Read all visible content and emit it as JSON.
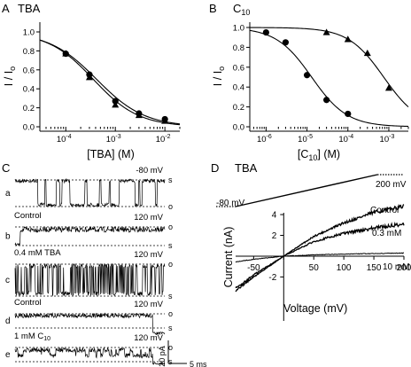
{
  "chart_data": [
    {
      "panel": "A",
      "type": "scatter",
      "title": "TBA",
      "xscale": "log",
      "xlabel": "[TBA] (M)",
      "ylabel": "I / I",
      "ylabel_sub": "o",
      "xlim": [
        3e-05,
        0.02
      ],
      "ylim": [
        0,
        1.0
      ],
      "xtick_base": "10",
      "xticks": [
        {
          "value": 0.0001,
          "exp": "-4"
        },
        {
          "value": 0.001,
          "exp": "-3"
        },
        {
          "value": 0.01,
          "exp": "-2"
        }
      ],
      "yticks": [
        0.0,
        0.2,
        0.4,
        0.6,
        0.8,
        1.0
      ],
      "ytick_labels": [
        "0.0",
        "0.2",
        "0.4",
        "0.6",
        "0.8",
        "1.0"
      ],
      "series": [
        {
          "marker": "circle",
          "x": [
            0.0001,
            0.0003,
            0.001,
            0.003,
            0.01
          ],
          "y": [
            0.77,
            0.55,
            0.27,
            0.14,
            0.08
          ]
        },
        {
          "marker": "triangle",
          "x": [
            0.0001,
            0.0003,
            0.001,
            0.003,
            0.01
          ],
          "y": [
            0.77,
            0.52,
            0.23,
            0.12,
            0.06
          ]
        }
      ],
      "fits": [
        {
          "ic50": 0.00042,
          "n": 0.9
        },
        {
          "ic50": 0.00036,
          "n": 0.95
        }
      ],
      "grid": false
    },
    {
      "panel": "B",
      "type": "scatter",
      "title": "C",
      "title_sub": "10",
      "xscale": "log",
      "xlabel_pre": "[C",
      "xlabel_sub": "10",
      "xlabel_post": "] (M)",
      "ylabel": "I / I",
      "ylabel_sub": "o",
      "xlim": [
        4e-07,
        0.003
      ],
      "ylim": [
        0,
        1.0
      ],
      "xtick_base": "10",
      "xticks": [
        {
          "value": 1e-06,
          "exp": "-6"
        },
        {
          "value": 1e-05,
          "exp": "-5"
        },
        {
          "value": 0.0001,
          "exp": "-4"
        },
        {
          "value": 0.001,
          "exp": "-3"
        }
      ],
      "yticks": [
        0.0,
        0.2,
        0.4,
        0.6,
        0.8,
        1.0
      ],
      "ytick_labels": [
        "0.0",
        "0.2",
        "0.4",
        "0.6",
        "0.8",
        "1.0"
      ],
      "series": [
        {
          "marker": "circle",
          "x": [
            1e-06,
            3e-06,
            1e-05,
            3e-05,
            0.0001
          ],
          "y": [
            0.95,
            0.85,
            0.52,
            0.27,
            0.13
          ]
        },
        {
          "marker": "triangle",
          "x": [
            3e-05,
            0.0001,
            0.0003,
            0.001
          ],
          "y": [
            0.95,
            0.88,
            0.74,
            0.39
          ]
        }
      ],
      "fits": [
        {
          "ic50": 1.3e-05,
          "n": 1.0
        },
        {
          "ic50": 0.00075,
          "n": 1.0
        }
      ],
      "grid": false
    },
    {
      "panel": "C",
      "type": "line",
      "description_labels": true,
      "traces": [
        {
          "row": "a",
          "label": "",
          "voltage": "-80 mV",
          "dashed_top": "s",
          "dashed_bottom": "o",
          "mode": "bursts_down"
        },
        {
          "row": "b",
          "label": "Control",
          "voltage": "120 mV",
          "dashed_top": "o",
          "dashed_bottom": "s",
          "mode": "open_noise"
        },
        {
          "row": "c",
          "label": "0.4 mM TBA",
          "voltage": "120 mV",
          "dashed_top": "o",
          "dashed_bottom": "s",
          "mode": "flicker"
        },
        {
          "row": "d",
          "label": "Control",
          "voltage": "120 mV",
          "dashed_top": "o",
          "dashed_bottom": "s",
          "mode": "open_then_close"
        },
        {
          "row": "e",
          "label": "1 mM C",
          "label_sub": "10",
          "voltage": "120 mV",
          "dashed_top": "o",
          "dashed_bottom": "s",
          "mode": "slow_block"
        }
      ],
      "scalebar": {
        "current": "20 pA",
        "time": "5 ms"
      }
    },
    {
      "panel": "D",
      "type": "line",
      "title": "TBA",
      "xlabel": "Voltage (mV)",
      "ylabel": "Current (nA)",
      "xlim": [
        -80,
        200
      ],
      "ylim": [
        -3.5,
        5.2
      ],
      "xticks": [
        -50,
        0,
        50,
        100,
        150,
        200
      ],
      "xtick_labels": [
        "-50",
        "",
        "50",
        "100",
        "150",
        "200"
      ],
      "yticks": [
        -2,
        0,
        2,
        4
      ],
      "ytick_labels": [
        "-2",
        "",
        "2",
        "4"
      ],
      "ramp": {
        "start_label": "-80 mV",
        "end_label": "200 mV"
      },
      "series": [
        {
          "name": "Control",
          "x": [
            -80,
            -50,
            0,
            50,
            100,
            150,
            200
          ],
          "y": [
            -3.3,
            -2.0,
            0.0,
            1.9,
            3.2,
            4.2,
            4.8
          ]
        },
        {
          "name": "0.3 mM",
          "x": [
            -80,
            -50,
            0,
            50,
            100,
            150,
            200
          ],
          "y": [
            -3.1,
            -1.8,
            0.0,
            1.4,
            2.2,
            2.7,
            3.1
          ]
        },
        {
          "name": "10 mM",
          "x": [
            -80,
            -50,
            0,
            50,
            100,
            150,
            200
          ],
          "y": [
            -0.55,
            -0.3,
            0.0,
            0.12,
            0.2,
            0.25,
            0.3
          ]
        }
      ],
      "grid": false
    }
  ],
  "panel_letters": {
    "A": "A",
    "B": "B",
    "C": "C",
    "D": "D"
  }
}
